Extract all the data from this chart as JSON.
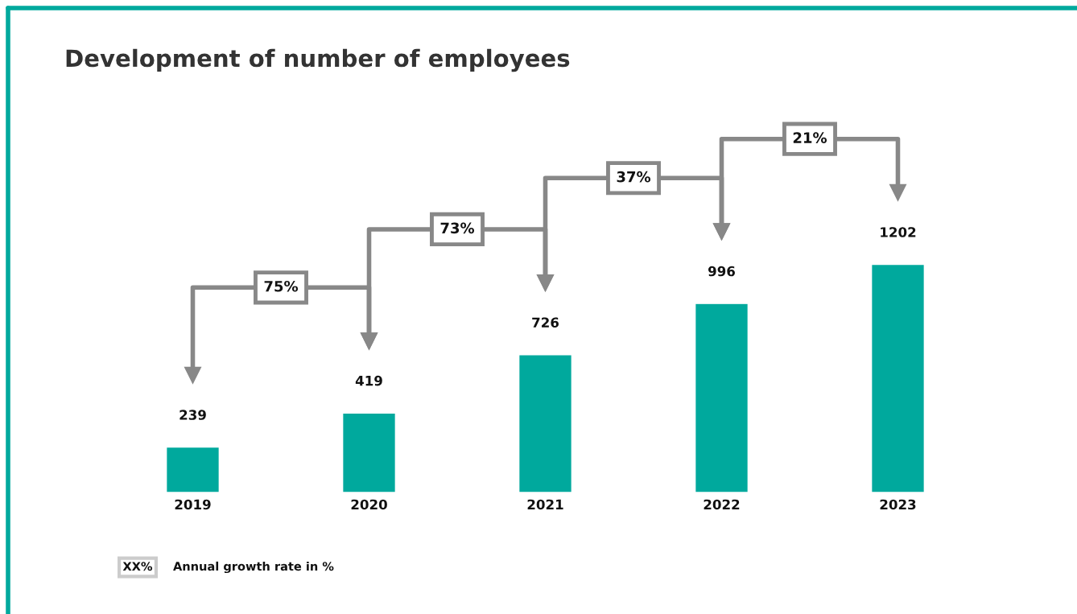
{
  "chart_data": {
    "type": "bar",
    "title": "Development of number of employees",
    "categories": [
      "2019",
      "2020",
      "2021",
      "2022",
      "2023"
    ],
    "values": [
      239,
      419,
      726,
      996,
      1202
    ],
    "color": "#00a99d",
    "data_labels": true,
    "grid": false,
    "legend": false,
    "annotations": [
      "75%",
      "73%",
      "37%",
      "21%",
      "XX%",
      "Annual growth rate in %"
    ]
  }
}
